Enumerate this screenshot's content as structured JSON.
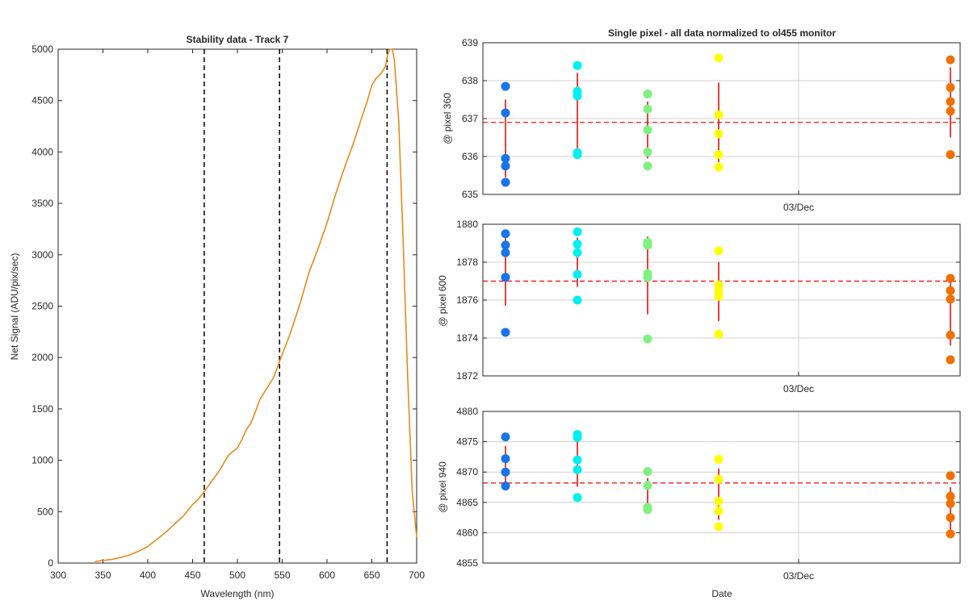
{
  "colors": {
    "spectrum": "#E8830C",
    "vline": "#000000",
    "mean_line": "#FF0000",
    "error_bar": "#E00000",
    "grid": "#d0d0d0",
    "group_colors": [
      "#1874E8",
      "#00F0F0",
      "#80F080",
      "#FFFF00",
      "#F07000"
    ]
  },
  "chart_data": [
    {
      "type": "line",
      "title": "Stability data - Track 7",
      "xlabel": "Wavelength (nm)",
      "ylabel": "Net Signal (ADU/pix/sec)",
      "xlim": [
        300,
        700
      ],
      "ylim": [
        0,
        5000
      ],
      "xticks": [
        300,
        350,
        400,
        450,
        500,
        550,
        600,
        650,
        700
      ],
      "yticks": [
        0,
        500,
        1000,
        1500,
        2000,
        2500,
        3000,
        3500,
        4000,
        4500,
        5000
      ],
      "grid": false,
      "vertical_lines": [
        463,
        547,
        667
      ],
      "series": [
        {
          "x": [
            341,
            350,
            360,
            370,
            380,
            390,
            400,
            410,
            420,
            430,
            440,
            450,
            455,
            460,
            465,
            470,
            480,
            490,
            500,
            505,
            510,
            515,
            520,
            525,
            530,
            540,
            550,
            560,
            570,
            580,
            590,
            600,
            610,
            620,
            630,
            640,
            645,
            650,
            655,
            660,
            665,
            668,
            670,
            673,
            675,
            680,
            685,
            690,
            695,
            700
          ],
          "y": [
            15,
            25,
            35,
            55,
            80,
            115,
            160,
            230,
            300,
            380,
            460,
            570,
            610,
            660,
            720,
            780,
            900,
            1050,
            1120,
            1200,
            1300,
            1360,
            1470,
            1590,
            1660,
            1800,
            2030,
            2260,
            2530,
            2830,
            3060,
            3310,
            3600,
            3860,
            4100,
            4370,
            4500,
            4650,
            4720,
            4760,
            4830,
            4960,
            5000,
            5000,
            4900,
            4300,
            3100,
            1800,
            700,
            250
          ]
        }
      ]
    },
    {
      "type": "scatter",
      "title": "Single pixel - all data normalized to ol455 monitor",
      "panels": [
        {
          "ylabel": "@ pixel 360",
          "xtick_label": "03/Dec",
          "ylim": [
            635,
            639
          ],
          "yticks": [
            635,
            636,
            637,
            638,
            639
          ],
          "mean": 636.9,
          "groups": [
            {
              "values": [
                637.85,
                637.15,
                635.95,
                635.75,
                635.32
              ],
              "err_low": 635.45,
              "err_high": 637.5
            },
            {
              "values": [
                638.4,
                637.72,
                637.6,
                636.1,
                636.05
              ],
              "err_low": 636.0,
              "err_high": 638.2
            },
            {
              "values": [
                637.65,
                637.25,
                636.7,
                636.12,
                635.75
              ],
              "err_low": 635.95,
              "err_high": 637.45
            },
            {
              "values": [
                638.6,
                637.1,
                636.6,
                636.05,
                635.72
              ],
              "err_low": 635.85,
              "err_high": 637.95
            },
            {
              "values": [
                638.55,
                637.82,
                637.45,
                637.2,
                636.05
              ],
              "err_low": 636.5,
              "err_high": 638.35
            }
          ]
        },
        {
          "ylabel": "@ pixel 600",
          "xtick_label": "03/Dec",
          "ylim": [
            1872,
            1880
          ],
          "yticks": [
            1872,
            1874,
            1876,
            1878,
            1880
          ],
          "mean": 1877.0,
          "groups": [
            {
              "values": [
                1879.5,
                1878.9,
                1878.5,
                1877.2,
                1874.3
              ],
              "err_low": 1875.7,
              "err_high": 1879.4
            },
            {
              "values": [
                1879.6,
                1878.95,
                1878.5,
                1877.35,
                1876.0
              ],
              "err_low": 1876.7,
              "err_high": 1879.3
            },
            {
              "values": [
                1879.05,
                1878.9,
                1877.4,
                1877.2,
                1873.95
              ],
              "err_low": 1875.25,
              "err_high": 1879.35
            },
            {
              "values": [
                1878.6,
                1876.8,
                1876.5,
                1876.2,
                1874.2
              ],
              "err_low": 1874.9,
              "err_high": 1878.0
            },
            {
              "values": [
                1877.15,
                1876.5,
                1876.05,
                1874.15,
                1872.85
              ],
              "err_low": 1873.6,
              "err_high": 1877.2
            }
          ]
        },
        {
          "ylabel": "@ pixel 940",
          "xlabel": "Date",
          "xtick_label": "03/Dec",
          "ylim": [
            4855,
            4880
          ],
          "yticks": [
            4855,
            4860,
            4865,
            4870,
            4875,
            4880
          ],
          "mean": 4868.2,
          "groups": [
            {
              "values": [
                4875.8,
                4872.2,
                4870.0,
                4867.7
              ],
              "err_low": 4867.8,
              "err_high": 4874.3
            },
            {
              "values": [
                4876.2,
                4875.7,
                4872.0,
                4870.4,
                4865.8
              ],
              "err_low": 4867.6,
              "err_high": 4876.2
            },
            {
              "values": [
                4870.1,
                4867.8,
                4864.2,
                4863.8
              ],
              "err_low": 4864.2,
              "err_high": 4869.0
            },
            {
              "values": [
                4872.1,
                4868.8,
                4865.2,
                4863.6,
                4861.0
              ],
              "err_low": 4862.1,
              "err_high": 4870.6
            },
            {
              "values": [
                4869.4,
                4866.0,
                4864.8,
                4862.5,
                4859.8
              ],
              "err_low": 4860.5,
              "err_high": 4867.5
            }
          ]
        }
      ]
    }
  ]
}
